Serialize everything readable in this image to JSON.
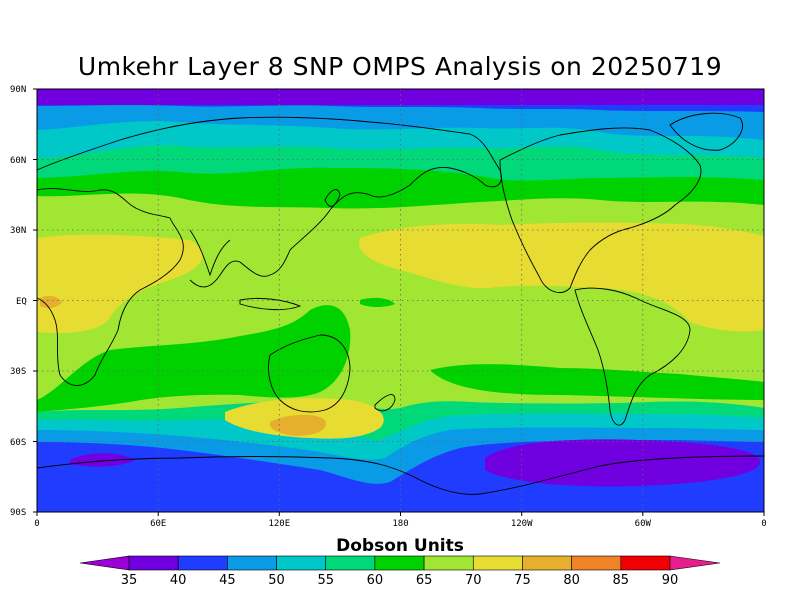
{
  "title": "Umkehr Layer 8 SNP OMPS Analysis on 20250719",
  "colorbar": {
    "title": "Dobson Units",
    "levels": [
      "35",
      "40",
      "45",
      "50",
      "55",
      "60",
      "65",
      "70",
      "75",
      "80",
      "85",
      "90"
    ],
    "colors": [
      "#9b00d8",
      "#7000e0",
      "#1f3cff",
      "#0a9be6",
      "#00c8c8",
      "#00d87a",
      "#00d200",
      "#a0e632",
      "#e6dc32",
      "#e6af2d",
      "#f08228",
      "#f00000",
      "#e61e8c"
    ]
  },
  "axes": {
    "y_labels": [
      "90N",
      "60N",
      "30N",
      "EQ",
      "30S",
      "60S",
      "90S"
    ],
    "x_labels": [
      "0",
      "60E",
      "120E",
      "180",
      "120W",
      "60W",
      "0"
    ]
  },
  "map_data": {
    "field": "Umkehr Layer 8 ozone",
    "units": "Dobson Units",
    "date": "20250719",
    "lon_range": [
      0,
      360
    ],
    "lat_range": [
      -90,
      90
    ],
    "band_levels": [
      35,
      40,
      45,
      50,
      55,
      60,
      65,
      70,
      75,
      80
    ]
  }
}
